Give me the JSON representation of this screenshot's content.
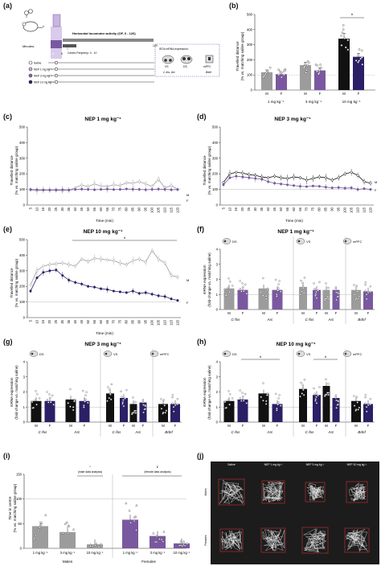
{
  "colors": {
    "male_fill": "#9c9c9c",
    "female_fill": "#7a58a0",
    "dark_male": "#111111",
    "dark_female": "#2b1f66",
    "nep1": "#c9b5e3",
    "nep3": "#8a68b8",
    "nep10": "#2b1f66",
    "ref_line": "#bbbbbb",
    "timeline_gray": "#aaaaaa",
    "timeline_purple": "#7a58a0"
  },
  "panel_labels": [
    "(a)",
    "(b)",
    "(c)",
    "(d)",
    "(e)",
    "(f)",
    "(g)",
    "(h)",
    "(i)",
    "(j)"
  ],
  "panel_a": {
    "minutes_label": "Minutes:",
    "time_start": "-5",
    "time_zero": "0",
    "time_end": "120",
    "protocol_title": "Horizontal locomotor activity (OF, 0 - 120)",
    "center_label": "Center-Periphery: 0 - 10",
    "ieg_title": "IEGs mRNA expression:",
    "regions": [
      "VS",
      "DS",
      "mPFC"
    ],
    "genes_vs_ds": "C-fos, Arc",
    "gene_mpfc": "Bdnf",
    "groups": [
      "Saline",
      "NEP 1 mg kg⁻¹",
      "NEP 3 mg kg⁻¹",
      "NEP 10 mg kg⁻¹"
    ]
  },
  "panel_b": {
    "ylabel": "Travelled distance",
    "ylabel2": "(% vs. matching saline group)",
    "yticks": [
      "0",
      "100",
      "200",
      "300",
      "400",
      "500"
    ],
    "doses": [
      "1 mg kg⁻¹",
      "3 mg kg⁻¹",
      "10 mg kg⁻¹"
    ],
    "sex": [
      "M",
      "F"
    ],
    "sig_marker": "#"
  },
  "panel_c": {
    "title": "NEP 1 mg kg⁻¹",
    "end_M": "M",
    "end_F": "F"
  },
  "panel_d": {
    "title": "NEP 3 mg kg⁻¹",
    "end_M": "M",
    "end_F": "F"
  },
  "panel_e": {
    "title": "NEP 10 mg kg⁻¹",
    "end_M": "M",
    "end_F": "F",
    "sig_marker": "#"
  },
  "locomotor_axes": {
    "ylabel": "Travelled distance",
    "ylabel2": "(% vs. matching saline group)",
    "xlabel": "Time (min)",
    "yticks": [
      "0",
      "100",
      "200",
      "300",
      "400",
      "500"
    ],
    "xticks": [
      "5",
      "10",
      "15",
      "20",
      "25",
      "30",
      "35",
      "40",
      "45",
      "50",
      "55",
      "60",
      "65",
      "70",
      "75",
      "80",
      "85",
      "90",
      "95",
      "100",
      "105",
      "110",
      "115",
      "120"
    ]
  },
  "mrna_axes": {
    "ylabel": "mRNA expression",
    "ylabel2": "(fold-change vs. matching saline)",
    "yticks": [
      "0",
      "1",
      "2",
      "3",
      "4"
    ],
    "region_labels": [
      "DS",
      "VS",
      "mPFC"
    ],
    "genes": [
      "C-fos",
      "Arc",
      "C-fos",
      "Arc",
      "Bdnf"
    ],
    "sex": [
      "M",
      "F"
    ]
  },
  "panel_f": {
    "title": "NEP 1 mg kg⁻¹"
  },
  "panel_g": {
    "title": "NEP 3 mg kg⁻¹"
  },
  "panel_h": {
    "title": "NEP 10 mg kg⁻¹",
    "sig_marker": "#"
  },
  "panel_i": {
    "ylabel": "Time in centre",
    "ylabel2": "(% vs. matching saline group)",
    "yticks": [
      "0",
      "50",
      "100",
      "150"
    ],
    "doses": [
      "1 mg kg⁻¹",
      "3 mg kg⁻¹",
      "10 mg kg⁻¹",
      "1 mg kg⁻¹",
      "3 mg kg⁻¹",
      "10 mg kg⁻¹"
    ],
    "groups": [
      "Males",
      "Females"
    ],
    "male_note_mark": "*",
    "male_note": "(male data analysis)",
    "female_note_mark": "£",
    "female_note": "(female data analysis)"
  },
  "panel_j": {
    "columns": [
      "Saline",
      "NEP 1 mg kg⁻¹",
      "NEP 3 mg kg⁻¹",
      "NEP 10 mg kg⁻¹"
    ],
    "rows": [
      "Males",
      "Females"
    ]
  },
  "chart_data": [
    {
      "panel": "b",
      "type": "bar",
      "categories": [
        "1 mg kg⁻¹ M",
        "1 mg kg⁻¹ F",
        "3 mg kg⁻¹ M",
        "3 mg kg⁻¹ F",
        "10 mg kg⁻¹ M",
        "10 mg kg⁻¹ F"
      ],
      "values": [
        118,
        105,
        165,
        130,
        340,
        220
      ],
      "errors": [
        15,
        12,
        18,
        15,
        35,
        22
      ],
      "ylabel": "Travelled distance (% vs. matching saline group)",
      "ylim": [
        0,
        500
      ]
    },
    {
      "panel": "c",
      "type": "line",
      "x": [
        5,
        10,
        15,
        20,
        25,
        30,
        35,
        40,
        45,
        50,
        55,
        60,
        65,
        70,
        75,
        80,
        85,
        90,
        95,
        100,
        105,
        110,
        115,
        120
      ],
      "series": [
        {
          "name": "M",
          "values": [
            95,
            92,
            95,
            96,
            94,
            92,
            96,
            110,
            128,
            118,
            135,
            122,
            120,
            130,
            125,
            142,
            140,
            150,
            135,
            120,
            165,
            110,
            125,
            100
          ]
        },
        {
          "name": "F",
          "values": [
            100,
            98,
            97,
            96,
            97,
            98,
            96,
            100,
            102,
            100,
            98,
            100,
            102,
            99,
            100,
            103,
            101,
            100,
            98,
            100,
            102,
            100,
            98,
            99
          ]
        }
      ],
      "xlabel": "Time (min)",
      "ylim": [
        0,
        500
      ]
    },
    {
      "panel": "d",
      "type": "line",
      "x": [
        5,
        10,
        15,
        20,
        25,
        30,
        35,
        40,
        45,
        50,
        55,
        60,
        65,
        70,
        75,
        80,
        85,
        90,
        95,
        100,
        105,
        110,
        115,
        120
      ],
      "series": [
        {
          "name": "M",
          "values": [
            145,
            200,
            210,
            205,
            195,
            190,
            180,
            175,
            185,
            175,
            170,
            180,
            175,
            160,
            170,
            180,
            175,
            160,
            175,
            200,
            210,
            190,
            150,
            140
          ]
        },
        {
          "name": "F",
          "values": [
            130,
            175,
            185,
            180,
            175,
            170,
            165,
            150,
            140,
            135,
            130,
            125,
            120,
            118,
            122,
            120,
            115,
            110,
            112,
            108,
            110,
            100,
            105,
            100
          ]
        }
      ],
      "xlabel": "Time (min)",
      "ylim": [
        0,
        500
      ]
    },
    {
      "panel": "e",
      "type": "line",
      "x": [
        5,
        10,
        15,
        20,
        25,
        30,
        35,
        40,
        45,
        50,
        55,
        60,
        65,
        70,
        75,
        80,
        85,
        90,
        95,
        100,
        105,
        110,
        115,
        120
      ],
      "series": [
        {
          "name": "M",
          "values": [
            210,
            300,
            330,
            340,
            345,
            350,
            340,
            330,
            375,
            360,
            380,
            375,
            370,
            365,
            350,
            340,
            365,
            375,
            355,
            430,
            375,
            350,
            270,
            260
          ]
        },
        {
          "name": "F",
          "values": [
            170,
            255,
            290,
            300,
            305,
            270,
            240,
            225,
            215,
            200,
            195,
            185,
            180,
            170,
            165,
            160,
            170,
            155,
            160,
            150,
            140,
            135,
            120,
            110
          ]
        }
      ],
      "xlabel": "Time (min)",
      "ylim": [
        0,
        500
      ]
    },
    {
      "panel": "f",
      "type": "bar",
      "categories": [
        "DS C-fos M",
        "DS C-fos F",
        "DS Arc M",
        "DS Arc F",
        "VS C-fos M",
        "VS C-fos F",
        "VS Arc M",
        "VS Arc F",
        "mPFC Bdnf M",
        "mPFC Bdnf F"
      ],
      "values": [
        1.4,
        1.3,
        1.4,
        1.3,
        1.5,
        1.3,
        1.3,
        1.3,
        1.3,
        1.2
      ],
      "ylim": [
        0,
        4
      ]
    },
    {
      "panel": "g",
      "type": "bar",
      "categories": [
        "DS C-fos M",
        "DS C-fos F",
        "DS Arc M",
        "DS Arc F",
        "VS C-fos M",
        "VS C-fos F",
        "VS Arc M",
        "VS Arc F",
        "mPFC Bdnf M",
        "mPFC Bdnf F"
      ],
      "values": [
        1.4,
        1.4,
        1.5,
        1.4,
        1.9,
        1.6,
        1.2,
        1.3,
        1.2,
        1.2
      ],
      "ylim": [
        0,
        4
      ]
    },
    {
      "panel": "h",
      "type": "bar",
      "categories": [
        "DS C-fos M",
        "DS C-fos F",
        "DS Arc M",
        "DS Arc F",
        "VS C-fos M",
        "VS C-fos F",
        "VS Arc M",
        "VS Arc F",
        "mPFC Bdnf M",
        "mPFC Bdnf F"
      ],
      "values": [
        1.4,
        1.5,
        1.9,
        1.2,
        2.2,
        1.8,
        2.4,
        1.6,
        1.4,
        1.2
      ],
      "ylim": [
        0,
        4
      ]
    },
    {
      "panel": "i",
      "type": "bar",
      "categories": [
        "Males 1 mg kg⁻¹",
        "Males 3 mg kg⁻¹",
        "Males 10 mg kg⁻¹",
        "Females 1 mg kg⁻¹",
        "Females 3 mg kg⁻¹",
        "Females 10 mg kg⁻¹"
      ],
      "values": [
        45,
        33,
        8,
        58,
        25,
        10
      ],
      "ylim": [
        0,
        150
      ]
    }
  ]
}
